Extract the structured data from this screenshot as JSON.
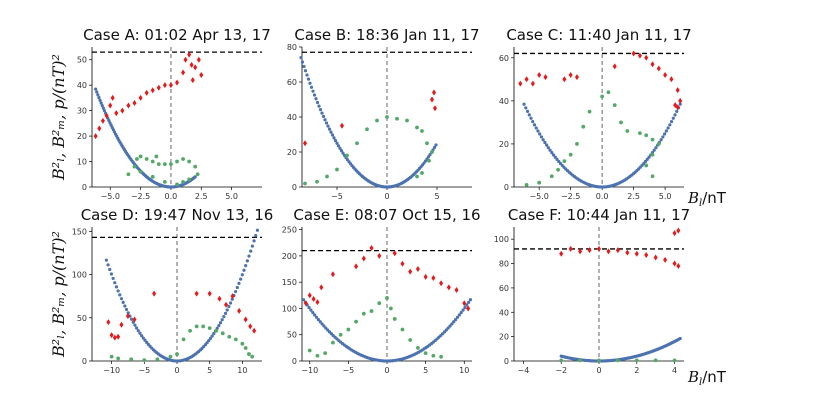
{
  "colors": {
    "p": "#e41a1c",
    "b_l": "#4c72b0",
    "b_m": "#55a868",
    "threshold": "#000000",
    "zero_line": "#808080"
  },
  "chart_data": [
    {
      "type": "scatter",
      "title": "Case A: 01:02 Apr 13, 17",
      "ylabel": "B_l^2, B_m^2, p/(nT)^2",
      "xlabel": "",
      "xlim": [
        -6.5,
        7.5
      ],
      "ylim": [
        0,
        55
      ],
      "xticks": [
        -5.0,
        -2.5,
        0.0,
        2.5,
        5.0
      ],
      "xtick_labels": [
        "−5.0",
        "−2.5",
        "0.0",
        "2.5",
        "5.0"
      ],
      "yticks": [
        0,
        10,
        20,
        30,
        40,
        50
      ],
      "ytick_labels": [
        "0",
        "10",
        "20",
        "30",
        "40",
        "50"
      ],
      "threshold": 53,
      "b_l_range": [
        -6.2,
        2.0
      ],
      "series": [
        {
          "name": "p",
          "points": [
            [
              -6.2,
              20
            ],
            [
              -5.9,
              23
            ],
            [
              -5.6,
              26
            ],
            [
              -5.3,
              28
            ],
            [
              -5.0,
              32
            ],
            [
              -4.8,
              35
            ],
            [
              -4.5,
              29
            ],
            [
              -4.0,
              30
            ],
            [
              -3.5,
              32
            ],
            [
              -3.0,
              33
            ],
            [
              -2.5,
              35
            ],
            [
              -2.0,
              37
            ],
            [
              -1.5,
              38
            ],
            [
              -1.0,
              39
            ],
            [
              -0.5,
              40
            ],
            [
              0.0,
              40
            ],
            [
              0.5,
              41
            ],
            [
              1.0,
              45
            ],
            [
              1.2,
              50
            ],
            [
              1.5,
              52
            ],
            [
              1.7,
              48
            ],
            [
              2.0,
              47
            ],
            [
              2.3,
              50
            ],
            [
              2.5,
              44
            ],
            [
              1.8,
              42
            ]
          ]
        },
        {
          "name": "B_m^2",
          "points": [
            [
              -3.5,
              5
            ],
            [
              -3.0,
              8
            ],
            [
              -2.8,
              11
            ],
            [
              -2.5,
              12
            ],
            [
              -2.0,
              11
            ],
            [
              -1.5,
              10
            ],
            [
              -1.2,
              12
            ],
            [
              -1.0,
              9
            ],
            [
              -0.5,
              9
            ],
            [
              0.0,
              9
            ],
            [
              0.5,
              10
            ],
            [
              1.0,
              11
            ],
            [
              1.5,
              10
            ],
            [
              2.0,
              8
            ],
            [
              2.2,
              5
            ],
            [
              1.5,
              3
            ],
            [
              1.0,
              2
            ],
            [
              0.5,
              1
            ],
            [
              -0.5,
              2
            ],
            [
              -1.5,
              4
            ],
            [
              -2.5,
              6
            ]
          ]
        }
      ]
    },
    {
      "type": "scatter",
      "title": "Case B: 18:36 Jan 11, 17",
      "ylabel": "",
      "xlabel": "",
      "xlim": [
        -8.5,
        8.5
      ],
      "ylim": [
        0,
        80
      ],
      "xticks": [
        -5,
        0,
        5
      ],
      "xtick_labels": [
        "−5",
        "0",
        "5"
      ],
      "yticks": [
        0,
        20,
        40,
        60,
        80
      ],
      "ytick_labels": [
        "0",
        "20",
        "40",
        "60",
        "80"
      ],
      "threshold": 77,
      "b_l_range": [
        -8.6,
        4.9
      ],
      "series": [
        {
          "name": "p",
          "points": [
            [
              -8.2,
              25
            ],
            [
              -4.5,
              35
            ],
            [
              4.5,
              50
            ],
            [
              4.7,
              54
            ],
            [
              4.8,
              45
            ]
          ]
        },
        {
          "name": "B_m^2",
          "points": [
            [
              -8.2,
              2
            ],
            [
              -7.0,
              3
            ],
            [
              -6.0,
              6
            ],
            [
              -5.0,
              10
            ],
            [
              -4.0,
              18
            ],
            [
              -3.0,
              25
            ],
            [
              -2.0,
              33
            ],
            [
              -1.0,
              38
            ],
            [
              0.0,
              40
            ],
            [
              1.0,
              39
            ],
            [
              2.0,
              38
            ],
            [
              3.0,
              34
            ],
            [
              3.5,
              32
            ],
            [
              4.0,
              25
            ],
            [
              4.5,
              20
            ],
            [
              4.2,
              15
            ],
            [
              3.5,
              8
            ],
            [
              3.0,
              6
            ]
          ]
        }
      ]
    },
    {
      "type": "scatter",
      "title": "Case C: 11:40 Jan 11, 17",
      "ylabel": "",
      "xlabel": "",
      "xlim": [
        -7.0,
        6.5
      ],
      "ylim": [
        0,
        65
      ],
      "xticks": [
        -5.0,
        -2.5,
        0.0,
        2.5,
        5.0
      ],
      "xtick_labels": [
        "−5.0",
        "−2.5",
        "0.0",
        "2.5",
        "5.0"
      ],
      "yticks": [
        0,
        20,
        40,
        60
      ],
      "ytick_labels": [
        "0",
        "20",
        "40",
        "60"
      ],
      "threshold": 62,
      "b_l_range": [
        -6.2,
        6.2
      ],
      "series": [
        {
          "name": "p",
          "points": [
            [
              -6.5,
              48
            ],
            [
              -6.0,
              50
            ],
            [
              -5.5,
              48
            ],
            [
              -5.0,
              52
            ],
            [
              -4.5,
              51
            ],
            [
              -3.0,
              50
            ],
            [
              -2.5,
              52
            ],
            [
              -2.0,
              51
            ],
            [
              1.0,
              56
            ],
            [
              2.5,
              62
            ],
            [
              3.0,
              61
            ],
            [
              3.5,
              60
            ],
            [
              4.0,
              57
            ],
            [
              4.5,
              55
            ],
            [
              5.0,
              52
            ],
            [
              5.5,
              50
            ],
            [
              6.0,
              45
            ],
            [
              6.2,
              40
            ],
            [
              5.8,
              38
            ],
            [
              6.0,
              37
            ]
          ]
        },
        {
          "name": "B_m^2",
          "points": [
            [
              -6.0,
              1
            ],
            [
              -5.0,
              2
            ],
            [
              -4.0,
              5
            ],
            [
              -3.5,
              8
            ],
            [
              -3.0,
              12
            ],
            [
              -2.5,
              15
            ],
            [
              -2.0,
              20
            ],
            [
              -1.5,
              28
            ],
            [
              -1.0,
              35
            ],
            [
              0.0,
              42
            ],
            [
              0.5,
              44
            ],
            [
              1.0,
              38
            ],
            [
              1.5,
              30
            ],
            [
              2.0,
              26
            ],
            [
              3.0,
              25
            ],
            [
              3.5,
              24
            ],
            [
              4.0,
              22
            ],
            [
              4.5,
              20
            ],
            [
              4.0,
              15
            ],
            [
              3.5,
              10
            ],
            [
              4.0,
              5
            ]
          ]
        }
      ]
    },
    {
      "type": "scatter",
      "title": "Case D: 19:47 Nov 13, 16",
      "ylabel": "B_l^2, B_m^2, p/(nT)^2",
      "xlabel": "",
      "xlim": [
        -13,
        13
      ],
      "ylim": [
        0,
        155
      ],
      "xticks": [
        -10,
        -5,
        0,
        5,
        10
      ],
      "xtick_labels": [
        "−10",
        "−5",
        "0",
        "5",
        "10"
      ],
      "yticks": [
        0,
        50,
        100,
        150
      ],
      "ytick_labels": [
        "0",
        "50",
        "100",
        "150"
      ],
      "threshold": 143,
      "b_l_range": [
        -10.8,
        12.3
      ],
      "series": [
        {
          "name": "p",
          "points": [
            [
              -10.5,
              45
            ],
            [
              -10.0,
              30
            ],
            [
              -9.5,
              27
            ],
            [
              -9.0,
              28
            ],
            [
              -8.5,
              42
            ],
            [
              -7.5,
              52
            ],
            [
              -6.5,
              48
            ],
            [
              -3.5,
              78
            ],
            [
              3.0,
              78
            ],
            [
              5.0,
              78
            ],
            [
              6.5,
              72
            ],
            [
              7.5,
              65
            ],
            [
              8.5,
              75
            ],
            [
              9.5,
              58
            ],
            [
              10.5,
              48
            ],
            [
              11.2,
              40
            ],
            [
              11.8,
              35
            ]
          ]
        },
        {
          "name": "B_m^2",
          "points": [
            [
              -10.0,
              5
            ],
            [
              -9.0,
              3
            ],
            [
              -7.0,
              2
            ],
            [
              -5.0,
              1
            ],
            [
              -3.0,
              2
            ],
            [
              -1.0,
              5
            ],
            [
              0.0,
              8
            ],
            [
              1.0,
              25
            ],
            [
              2.0,
              35
            ],
            [
              3.0,
              40
            ],
            [
              4.0,
              40
            ],
            [
              5.0,
              38
            ],
            [
              6.0,
              35
            ],
            [
              7.0,
              32
            ],
            [
              8.0,
              28
            ],
            [
              9.0,
              25
            ],
            [
              10.0,
              20
            ],
            [
              10.5,
              15
            ],
            [
              11.0,
              8
            ],
            [
              11.5,
              5
            ]
          ]
        }
      ]
    },
    {
      "type": "scatter",
      "title": "Case E: 08:07 Oct 15, 16",
      "ylabel": "",
      "xlabel": "",
      "xlim": [
        -11,
        11
      ],
      "ylim": [
        0,
        255
      ],
      "xticks": [
        -10,
        -5,
        0,
        5,
        10
      ],
      "xtick_labels": [
        "−10",
        "−5",
        "0",
        "5",
        "10"
      ],
      "yticks": [
        0,
        50,
        100,
        150,
        200,
        250
      ],
      "ytick_labels": [
        "0",
        "50",
        "100",
        "150",
        "200",
        "250"
      ],
      "threshold": 210,
      "b_l_range": [
        -10.8,
        10.8
      ],
      "series": [
        {
          "name": "p",
          "points": [
            [
              -10.5,
              110
            ],
            [
              -10.0,
              125
            ],
            [
              -9.5,
              118
            ],
            [
              -9.0,
              112
            ],
            [
              -8.5,
              140
            ],
            [
              -7.0,
              165
            ],
            [
              -4.0,
              180
            ],
            [
              -3.0,
              195
            ],
            [
              -2.0,
              215
            ],
            [
              -1.0,
              200
            ],
            [
              1.0,
              205
            ],
            [
              2.0,
              185
            ],
            [
              3.0,
              170
            ],
            [
              4.0,
              175
            ],
            [
              5.0,
              160
            ],
            [
              6.0,
              158
            ],
            [
              7.0,
              148
            ],
            [
              8.0,
              140
            ],
            [
              9.0,
              135
            ],
            [
              10.0,
              110
            ],
            [
              10.5,
              100
            ]
          ]
        },
        {
          "name": "B_m^2",
          "points": [
            [
              -10.0,
              20
            ],
            [
              -9.0,
              10
            ],
            [
              -8.0,
              15
            ],
            [
              -7.0,
              35
            ],
            [
              -6.0,
              50
            ],
            [
              -5.0,
              60
            ],
            [
              -4.0,
              75
            ],
            [
              -3.0,
              90
            ],
            [
              -2.0,
              95
            ],
            [
              -1.0,
              110
            ],
            [
              0.0,
              120
            ],
            [
              0.5,
              100
            ],
            [
              1.0,
              80
            ],
            [
              2.0,
              60
            ],
            [
              3.0,
              40
            ],
            [
              4.0,
              25
            ],
            [
              5.0,
              15
            ],
            [
              6.0,
              10
            ],
            [
              7.0,
              8
            ]
          ]
        }
      ]
    },
    {
      "type": "scatter",
      "title": "Case F: 10:44 Jan 11, 17",
      "ylabel": "",
      "xlabel": "",
      "xlim": [
        -4.5,
        4.5
      ],
      "ylim": [
        0,
        110
      ],
      "xticks": [
        -4,
        -2,
        0,
        2,
        4
      ],
      "xtick_labels": [
        "−4",
        "−2",
        "0",
        "2",
        "4"
      ],
      "yticks": [
        0,
        20,
        40,
        60,
        80,
        100
      ],
      "ytick_labels": [
        "0",
        "20",
        "40",
        "60",
        "80",
        "100"
      ],
      "threshold": 92,
      "b_l_range": [
        -2.0,
        4.3
      ],
      "series": [
        {
          "name": "p",
          "points": [
            [
              -2.0,
              88
            ],
            [
              -1.5,
              92
            ],
            [
              -1.0,
              90
            ],
            [
              -0.5,
              91
            ],
            [
              0.0,
              92
            ],
            [
              0.5,
              90
            ],
            [
              1.0,
              91
            ],
            [
              1.5,
              89
            ],
            [
              2.0,
              88
            ],
            [
              2.5,
              87
            ],
            [
              3.0,
              85
            ],
            [
              3.5,
              83
            ],
            [
              4.0,
              80
            ],
            [
              4.2,
              78
            ],
            [
              4.0,
              105
            ],
            [
              4.2,
              107
            ]
          ]
        },
        {
          "name": "B_m^2",
          "points": [
            [
              -2.0,
              0.5
            ],
            [
              -1.0,
              0.5
            ],
            [
              0.0,
              0.5
            ],
            [
              1.0,
              0.5
            ],
            [
              2.0,
              0.5
            ],
            [
              3.0,
              0.5
            ],
            [
              4.0,
              0.5
            ]
          ]
        }
      ]
    }
  ],
  "axis_label_x": "B_l/nT"
}
